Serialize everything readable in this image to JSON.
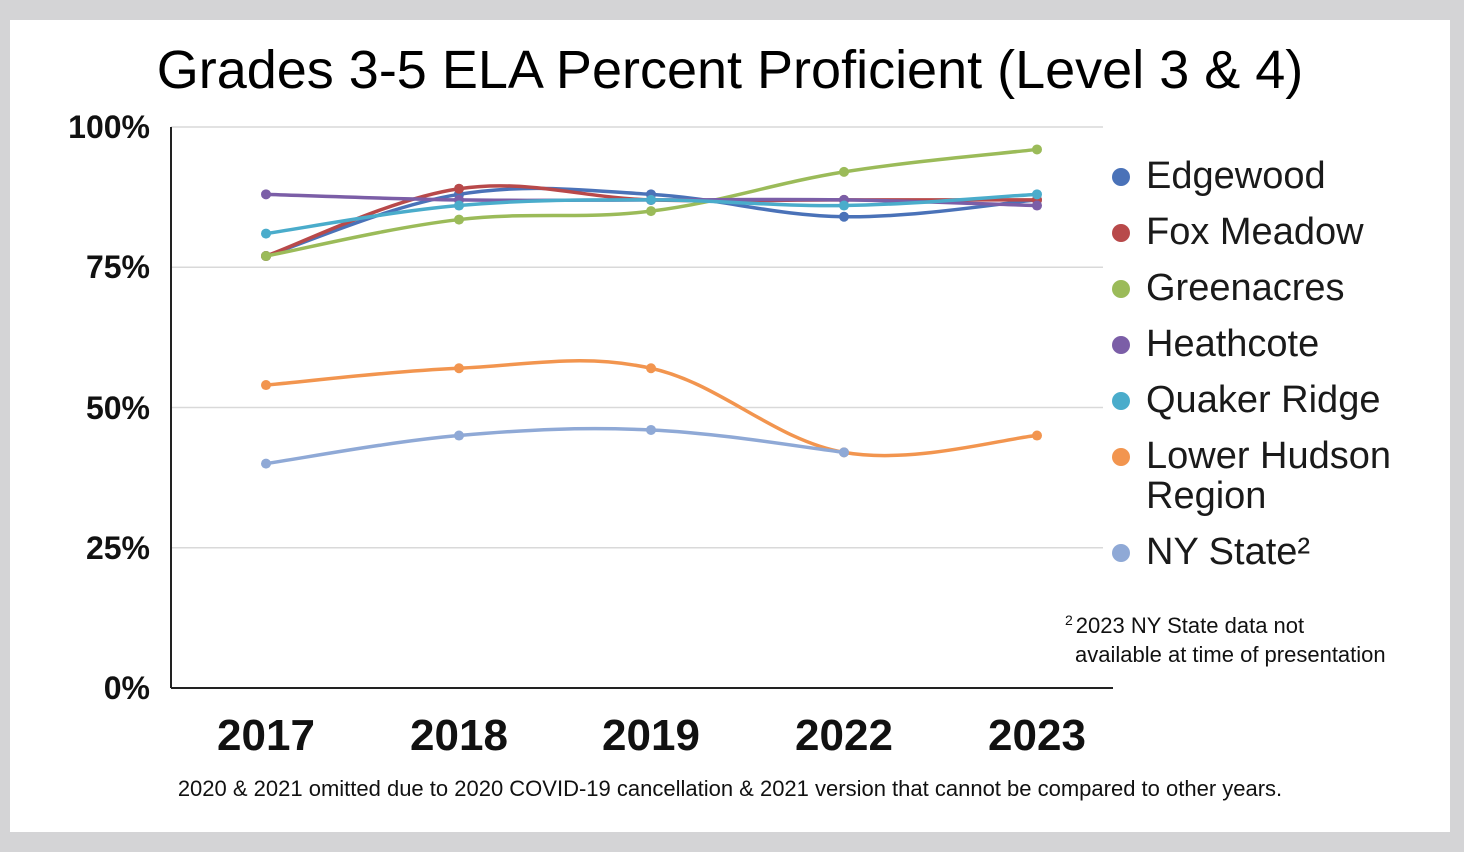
{
  "chart_data": {
    "type": "line",
    "title": "Grades 3-5 ELA Percent Proficient (Level 3 & 4)",
    "xlabel": "",
    "ylabel": "",
    "categories": [
      "2017",
      "2018",
      "2019",
      "2022",
      "2023"
    ],
    "y_ticks": [
      "0%",
      "25%",
      "50%",
      "75%",
      "100%"
    ],
    "ylim": [
      0,
      100
    ],
    "grid": true,
    "legend_position": "right",
    "series": [
      {
        "name": "Edgewood",
        "color": "#4a72b8",
        "values": [
          77,
          88,
          88,
          84,
          87
        ]
      },
      {
        "name": "Fox Meadow",
        "color": "#b8494a",
        "values": [
          77,
          89,
          87,
          87,
          87
        ]
      },
      {
        "name": "Greenacres",
        "color": "#9bbb59",
        "values": [
          77,
          83.5,
          85,
          92,
          96
        ]
      },
      {
        "name": "Heathcote",
        "color": "#7b5ea7",
        "values": [
          88,
          87,
          87,
          87,
          86
        ]
      },
      {
        "name": "Quaker Ridge",
        "color": "#4aaccb",
        "values": [
          81,
          86,
          87,
          86,
          88
        ]
      },
      {
        "name": "Lower Hudson\nRegion",
        "color": "#f2954f",
        "values": [
          54,
          57,
          57,
          42,
          45
        ]
      },
      {
        "name": "NY State²",
        "color": "#8fa9d6",
        "values": [
          40,
          45,
          46,
          42,
          null
        ]
      }
    ],
    "footnote": {
      "marker": "2",
      "line1": "2023 NY State data not",
      "line2": "available at time of presentation"
    },
    "note": "2020 & 2021 omitted due to 2020 COVID-19 cancellation & 2021 version that cannot be compared to other years."
  }
}
